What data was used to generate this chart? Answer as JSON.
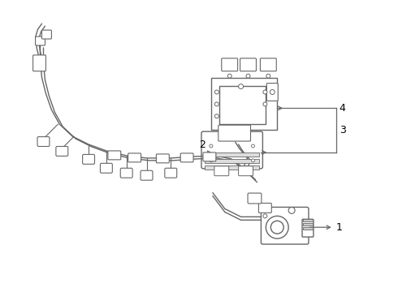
{
  "background_color": "#ffffff",
  "line_color": "#666666",
  "label_color": "#000000",
  "figsize": [
    4.9,
    3.6
  ],
  "dpi": 100
}
